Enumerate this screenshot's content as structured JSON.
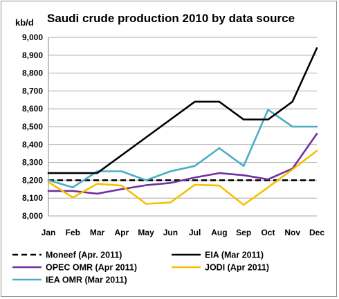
{
  "chart_data": {
    "type": "line",
    "title": "Saudi crude production 2010 by data source",
    "ylabel": "kb/d",
    "xlabel": "",
    "categories": [
      "Jan",
      "Feb",
      "Mar",
      "Apr",
      "May",
      "Jun",
      "Jul",
      "Aug",
      "Sep",
      "Oct",
      "Nov",
      "Dec"
    ],
    "ylim": [
      8000,
      9000
    ],
    "yticks": [
      8000,
      8100,
      8200,
      8300,
      8400,
      8500,
      8600,
      8700,
      8800,
      8900,
      9000
    ],
    "ytick_labels": [
      "8,000",
      "8,100",
      "8,200",
      "8,300",
      "8,400",
      "8,500",
      "8,600",
      "8,700",
      "8,800",
      "8,900",
      "9,000"
    ],
    "grid": "horizontal",
    "legend_position": "bottom",
    "series": [
      {
        "name": "Moneef (Apr. 2011)",
        "color": "#000000",
        "dashed": true,
        "values": [
          8200,
          8200,
          8200,
          8200,
          8200,
          8200,
          8200,
          8200,
          8200,
          8200,
          8200,
          8200
        ]
      },
      {
        "name": "EIA (Mar 2011)",
        "color": "#000000",
        "dashed": false,
        "values": [
          8240,
          8240,
          8240,
          8340,
          8440,
          8540,
          8640,
          8640,
          8540,
          8540,
          8640,
          8940
        ]
      },
      {
        "name": "OPEC OMR (Apr 2011)",
        "color": "#7030a0",
        "dashed": false,
        "values": [
          8140,
          8140,
          8125,
          8150,
          8172,
          8185,
          8215,
          8240,
          8228,
          8205,
          8265,
          8460
        ]
      },
      {
        "name": "JODI (Apr 2011)",
        "color": "#f5c000",
        "dashed": false,
        "values": [
          8190,
          8103,
          8180,
          8170,
          8068,
          8075,
          8175,
          8170,
          8062,
          8160,
          8260,
          8365
        ]
      },
      {
        "name": "IEA OMR (Mar 2011)",
        "color": "#4bacc6",
        "dashed": false,
        "values": [
          8200,
          8160,
          8250,
          8250,
          8200,
          8250,
          8280,
          8380,
          8280,
          8595,
          8500,
          8500
        ]
      }
    ]
  }
}
